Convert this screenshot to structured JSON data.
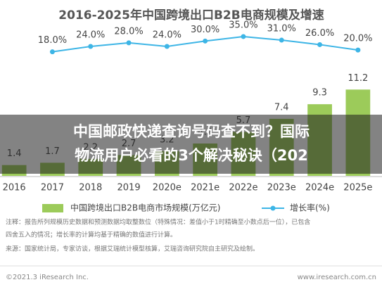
{
  "chart_data": {
    "type": "bar-line",
    "title": "2016-2025年中国跨境出口B2B电商规模及增速",
    "categories": [
      "2016",
      "2017",
      "2018",
      "2019",
      "2020e",
      "2021e",
      "2022e",
      "2023e",
      "2024e",
      "2025e"
    ],
    "series": [
      {
        "name": "中国跨境出口B2B电商市场规模(万亿元)",
        "color": "#9ccb5a",
        "values": [
          1.4,
          1.7,
          2.2,
          2.7,
          3.2,
          4.2,
          5.7,
          7.4,
          9.3,
          11.2
        ]
      },
      {
        "name": "增长率(%)",
        "color": "#3db5e6",
        "axis": "y2",
        "values": [
          null,
          18.0,
          24.0,
          28.0,
          24.0,
          30.0,
          35.0,
          31.0,
          26.0,
          20.0
        ],
        "value_labels": [
          null,
          "18.0%",
          "24.0%",
          "28.0%",
          "24.0%",
          "30.0%",
          "35.0%",
          "31.0%",
          "26.0%",
          "20.0%"
        ]
      }
    ],
    "ylim": [
      0,
      21
    ],
    "y2lim": [
      -120,
      60
    ]
  },
  "notes": [
    "注释：报告所列规模历史数据和预测数据均取整数位（特殊情况：差值小于1时精确至小数点后一位），已包含",
    "四舍五入的情况；增长率的计算均基于精确的数值进行计算。",
    "来源：国家统计局，专家访谈，根据艾瑞统计模型核算，艾瑞咨询研究院自主研究及绘制。"
  ],
  "footer": {
    "left": "©2021.3 iResearch Inc.",
    "right": "www.iresearch.com.cn"
  },
  "overlay": {
    "lines": [
      "中国邮政快递查询号码查不到？国际",
      "物流用户必看的3个解决秘诀（202"
    ]
  }
}
